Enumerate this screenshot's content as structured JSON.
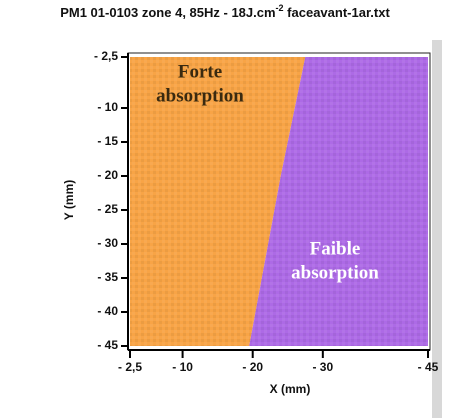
{
  "chart_data": {
    "type": "heatmap",
    "title_parts": [
      "PM1 01-0103 zone 4, 85Hz - 18J.cm",
      "-2",
      " faceavant-1ar.txt"
    ],
    "xlabel": "X (mm)",
    "ylabel": "Y (mm)",
    "xlim": [
      -2.5,
      -45
    ],
    "ylim": [
      -45,
      -2.5
    ],
    "xticks": [
      {
        "value": -2.5,
        "label": "- 2,5"
      },
      {
        "value": -10,
        "label": "- 10"
      },
      {
        "value": -20,
        "label": "- 20"
      },
      {
        "value": -30,
        "label": "- 30"
      },
      {
        "value": -45,
        "label": "- 45"
      }
    ],
    "yticks": [
      {
        "value": -2.5,
        "label": "- 2,5"
      },
      {
        "value": -10,
        "label": "- 10"
      },
      {
        "value": -15,
        "label": "- 15"
      },
      {
        "value": -20,
        "label": "- 20"
      },
      {
        "value": -25,
        "label": "- 25"
      },
      {
        "value": -30,
        "label": "- 30"
      },
      {
        "value": -35,
        "label": "- 35"
      },
      {
        "value": -40,
        "label": "- 40"
      },
      {
        "value": -45,
        "label": "- 45"
      }
    ],
    "boundary": {
      "x": [
        -27.5,
        -24,
        -19.5
      ],
      "y": [
        -2.5,
        -20,
        -45
      ]
    },
    "regions": [
      {
        "name": [
          "Forte",
          "absorption"
        ],
        "color": "#f8a446",
        "text_color": "#3a2a10"
      },
      {
        "name": [
          "Faible",
          "absorption"
        ],
        "color": "#ad6ae6",
        "text_color": "#ffffff"
      }
    ]
  }
}
